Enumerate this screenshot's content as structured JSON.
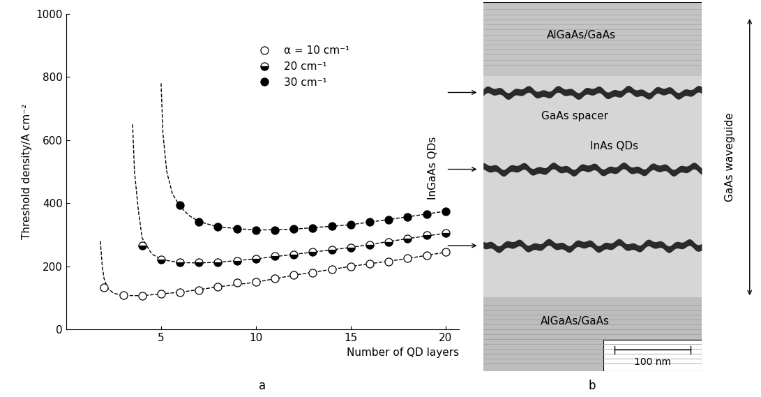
{
  "chart_data": {
    "type": "scatter",
    "x_label": "Number of QD layers",
    "y_label": "Threshold density/A cm⁻²",
    "xlim": [
      0,
      20.7
    ],
    "xticks": [
      5,
      10,
      15,
      20
    ],
    "ylim": [
      0,
      1000
    ],
    "yticks": [
      0,
      200,
      400,
      600,
      800,
      1000
    ],
    "legend": "upper center",
    "series": [
      {
        "name": "α = 10 cm⁻¹",
        "color": "#000000",
        "marker": "open_circle",
        "x": [
          2,
          3,
          4,
          5,
          6,
          7,
          8,
          9,
          10,
          11,
          12,
          13,
          14,
          15,
          16,
          17,
          18,
          19,
          20
        ],
        "values": [
          133,
          108,
          107,
          113,
          118,
          125,
          135,
          148,
          150,
          162,
          172,
          180,
          190,
          200,
          208,
          215,
          225,
          235,
          245
        ],
        "fit": {
          "line_style": "dashed",
          "x": [
            1.8,
            1.9,
            2.0,
            2.2,
            2.5,
            3,
            4,
            5,
            6,
            8,
            10,
            12,
            15,
            18,
            20
          ],
          "values": [
            280,
            200,
            160,
            130,
            115,
            108,
            107,
            113,
            118,
            135,
            150,
            172,
            200,
            225,
            245
          ]
        }
      },
      {
        "name": "20 cm⁻¹",
        "color": "#000000",
        "marker": "half_circle",
        "x": [
          4,
          5,
          6,
          7,
          8,
          9,
          10,
          11,
          12,
          13,
          14,
          15,
          16,
          17,
          18,
          19,
          20
        ],
        "values": [
          265,
          222,
          212,
          212,
          213,
          218,
          224,
          232,
          238,
          245,
          252,
          260,
          268,
          278,
          288,
          298,
          305
        ],
        "fit": {
          "line_style": "dashed",
          "x": [
            3.5,
            3.6,
            3.8,
            4,
            4.5,
            5,
            6,
            7,
            8,
            10,
            12,
            15,
            18,
            20
          ],
          "values": [
            650,
            500,
            380,
            290,
            240,
            222,
            212,
            211,
            213,
            224,
            238,
            260,
            288,
            305
          ]
        }
      },
      {
        "name": "30 cm⁻¹",
        "color": "#000000",
        "marker": "filled_circle",
        "x": [
          6,
          7,
          8,
          9,
          10,
          11,
          12,
          13,
          14,
          15,
          16,
          17,
          18,
          19,
          20
        ],
        "values": [
          395,
          342,
          325,
          318,
          315,
          315,
          318,
          322,
          327,
          332,
          340,
          348,
          357,
          366,
          375
        ],
        "fit": {
          "line_style": "dashed",
          "x": [
            5.0,
            5.1,
            5.3,
            5.6,
            6,
            6.5,
            7,
            8,
            10,
            12,
            15,
            18,
            20
          ],
          "values": [
            780,
            620,
            500,
            430,
            390,
            360,
            342,
            325,
            315,
            318,
            332,
            357,
            375
          ]
        }
      }
    ]
  },
  "micrograph": {
    "top_region": "AlGaAs/GaAs",
    "bottom_region": "AlGaAs/GaAs",
    "spacer_label": "GaAs spacer",
    "dots_label": "InAs QDs",
    "scale_bar": "100 nm",
    "left_label": "InGaAs QDs",
    "right_label": "GaAs waveguide"
  },
  "panel_labels": [
    "a",
    "b"
  ]
}
